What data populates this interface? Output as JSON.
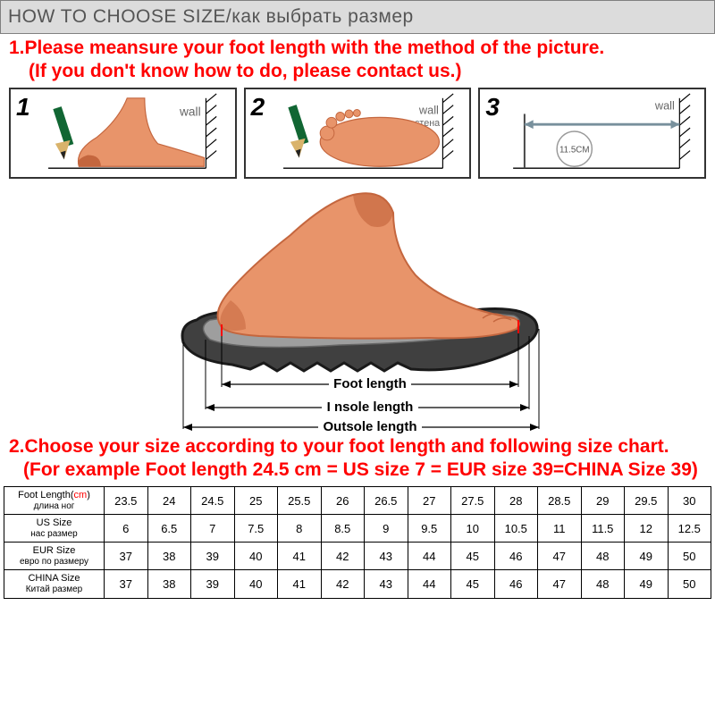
{
  "header": {
    "title": "HOW TO CHOOSE SIZE/как выбрать размер"
  },
  "instruction1": {
    "line1": "1.Please meansure your foot length with the method of the picture.",
    "line2": "(If you don't know how to do, please contact us.)"
  },
  "steps": [
    {
      "num": "1",
      "wall_label": "wall"
    },
    {
      "num": "2",
      "wall_label": "wall",
      "wall_label_ru": "стена"
    },
    {
      "num": "3",
      "wall_label": "wall",
      "measure": "11.5CM"
    }
  ],
  "diagram": {
    "labels": {
      "foot_length": "Foot length",
      "insole_length": "I nsole length",
      "outsole_length": "Outsole length"
    },
    "colors": {
      "skin": "#e8946a",
      "skin_dark": "#c4663e",
      "sole_outline": "#1a1a1a",
      "sole_fill": "#404040",
      "insole_grey": "#9e9e9e",
      "arrow": "#000000",
      "text": "#000000"
    }
  },
  "instruction2": {
    "line1": "2.Choose your size according to your foot length and following size chart.",
    "line2": "(For example Foot length 24.5 cm = US size 7 = EUR size 39=CHINA Size 39)"
  },
  "table": {
    "header_colors": {
      "cm": "#ff0000"
    },
    "rows": [
      {
        "label_en": "Foot Length(",
        "label_unit": "cm",
        "label_close": ")",
        "label_ru": "длина ног",
        "vals": [
          "23.5",
          "24",
          "24.5",
          "25",
          "25.5",
          "26",
          "26.5",
          "27",
          "27.5",
          "28",
          "28.5",
          "29",
          "29.5",
          "30"
        ]
      },
      {
        "label_en": "US Size",
        "label_ru": "нас размер",
        "vals": [
          "6",
          "6.5",
          "7",
          "7.5",
          "8",
          "8.5",
          "9",
          "9.5",
          "10",
          "10.5",
          "11",
          "11.5",
          "12",
          "12.5"
        ]
      },
      {
        "label_en": "EUR Size",
        "label_ru": "евро по размеру",
        "vals": [
          "37",
          "38",
          "39",
          "40",
          "41",
          "42",
          "43",
          "44",
          "45",
          "46",
          "47",
          "48",
          "49",
          "50"
        ]
      },
      {
        "label_en": "CHINA Size",
        "label_ru": "Китай размер",
        "vals": [
          "37",
          "38",
          "39",
          "40",
          "41",
          "42",
          "43",
          "44",
          "45",
          "46",
          "47",
          "48",
          "49",
          "50"
        ]
      }
    ]
  },
  "colors": {
    "header_bg": "#dcdcdc",
    "header_text": "#555555",
    "red": "#ff0000",
    "border": "#000000",
    "bg": "#ffffff"
  }
}
